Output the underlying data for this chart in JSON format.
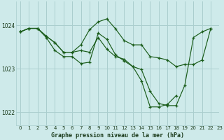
{
  "title": "Graphe pression niveau de la mer (hPa)",
  "bg_color": "#ceeaea",
  "grid_color": "#aacece",
  "line_color": "#1a5c1a",
  "xlim": [
    -0.5,
    23
  ],
  "ylim": [
    1021.7,
    1024.55
  ],
  "yticks": [
    1022,
    1023,
    1024
  ],
  "xticks": [
    0,
    1,
    2,
    3,
    4,
    5,
    6,
    7,
    8,
    9,
    10,
    11,
    12,
    13,
    14,
    15,
    16,
    17,
    18,
    19,
    20,
    21,
    22,
    23
  ],
  "series": [
    {
      "x": [
        0,
        1,
        2,
        3,
        4,
        5,
        6,
        7,
        8,
        9,
        10,
        11,
        12,
        13,
        14,
        15,
        16,
        17,
        18,
        19,
        20,
        21,
        22
      ],
      "y": [
        1023.85,
        1023.93,
        1023.93,
        1023.75,
        1023.6,
        1023.38,
        1023.38,
        1023.55,
        1023.9,
        1024.08,
        1024.15,
        1023.92,
        1023.65,
        1023.55,
        1023.55,
        1023.28,
        1023.25,
        1023.2,
        1023.05,
        1023.1,
        1023.1,
        1023.2,
        1023.93
      ]
    },
    {
      "x": [
        0,
        1,
        2,
        3,
        4,
        5,
        6,
        7,
        8,
        9,
        10,
        11,
        12,
        13,
        14,
        15,
        16,
        17,
        18,
        19,
        20,
        21,
        22
      ],
      "y": [
        1023.85,
        1023.93,
        1023.93,
        1023.75,
        1023.6,
        1023.38,
        1023.38,
        1023.42,
        1023.38,
        1023.72,
        1023.45,
        1023.28,
        1023.22,
        1023.05,
        1022.98,
        1022.48,
        1022.2,
        1022.15,
        1022.15,
        1022.62,
        1023.72,
        1023.85,
        1023.93
      ]
    },
    {
      "x": [
        0,
        1,
        2,
        3,
        4,
        5,
        6,
        7,
        8,
        9,
        10,
        11,
        12,
        13,
        14,
        15,
        16,
        17,
        18
      ],
      "y": [
        1023.85,
        1023.93,
        1023.93,
        1023.72,
        1023.42,
        1023.28,
        1023.28,
        1023.12,
        1023.15,
        1023.82,
        1023.68,
        1023.32,
        1023.18,
        1023.05,
        1022.72,
        1022.12,
        1022.12,
        1022.18,
        1022.38
      ]
    }
  ]
}
